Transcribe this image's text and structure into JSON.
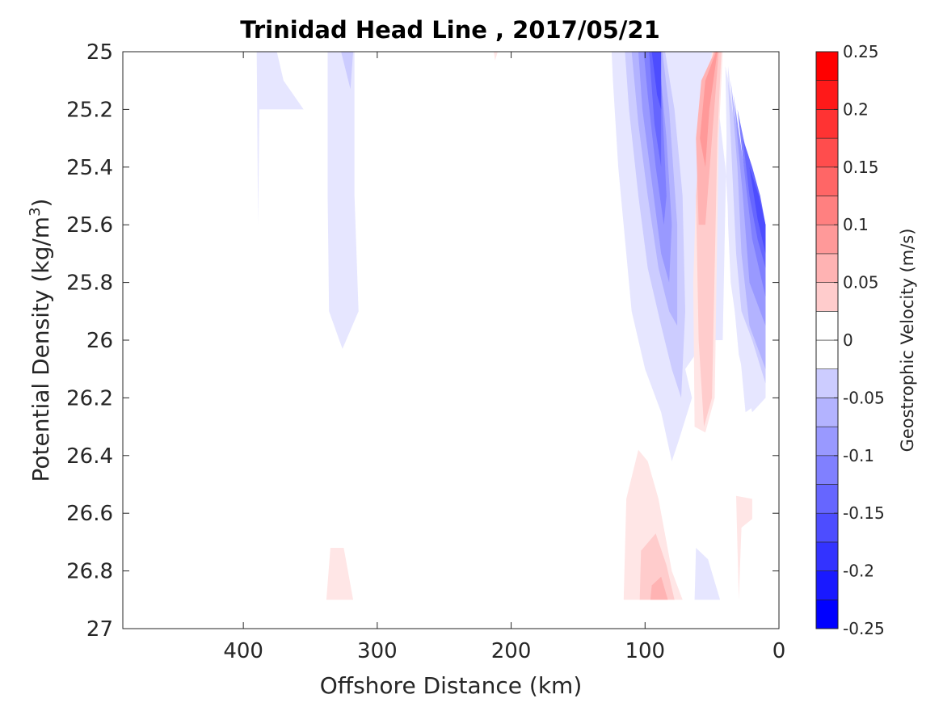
{
  "chart_data": {
    "type": "contour",
    "title": "Trinidad Head Line , 2017/05/21",
    "xlabel": "Offshore Distance (km)",
    "ylabel_main": "Potential Density (kg/m",
    "ylabel_sup": "3",
    "ylabel_end": ")",
    "x_direction": "reversed",
    "xlim": [
      0,
      490
    ],
    "ylim": [
      25,
      27
    ],
    "y_direction": "reversed",
    "xticks": [
      400,
      300,
      200,
      100,
      0
    ],
    "yticks": [
      25,
      25.2,
      25.4,
      25.6,
      25.8,
      26,
      26.2,
      26.4,
      26.6,
      26.8,
      27
    ],
    "ytick_labels": [
      "25",
      "25.2",
      "25.4",
      "25.6",
      "25.8",
      "26",
      "26.2",
      "26.4",
      "26.6",
      "26.8",
      "27"
    ],
    "grid": false,
    "colorbar": {
      "label": "Geostrophic Velocity (m/s)",
      "levels": [
        -0.25,
        -0.225,
        -0.2,
        -0.175,
        -0.15,
        -0.125,
        -0.1,
        -0.075,
        -0.05,
        -0.025,
        0,
        0.025,
        0.05,
        0.075,
        0.1,
        0.125,
        0.15,
        0.175,
        0.2,
        0.225,
        0.25
      ],
      "ticks": [
        0.25,
        0.2,
        0.15,
        0.1,
        0.05,
        0,
        -0.05,
        -0.1,
        -0.15,
        -0.2,
        -0.25
      ],
      "tick_labels": [
        "0.25",
        "0.2",
        "0.15",
        "0.1",
        "0.05",
        "0",
        "-0.05",
        "-0.1",
        "-0.15",
        "-0.2",
        "-0.25"
      ],
      "colormap": "blue-white-red"
    },
    "regions": [
      {
        "v": -0.025,
        "pts": [
          [
            390,
            25
          ],
          [
            375,
            25
          ],
          [
            370,
            25.1
          ],
          [
            355,
            25.2
          ],
          [
            388,
            25.2
          ],
          [
            389,
            25.6
          ]
        ]
      },
      {
        "v": -0.025,
        "pts": [
          [
            337,
            25
          ],
          [
            317,
            25
          ],
          [
            317,
            25.5
          ],
          [
            314,
            25.9
          ],
          [
            326,
            26.03
          ],
          [
            336,
            25.9
          ],
          [
            337,
            25.5
          ]
        ]
      },
      {
        "v": -0.05,
        "pts": [
          [
            327,
            25
          ],
          [
            318,
            25
          ],
          [
            320,
            25.13
          ]
        ]
      },
      {
        "v": 0.025,
        "pts": [
          [
            210,
            25
          ],
          [
            213,
            25
          ],
          [
            212,
            25.03
          ]
        ]
      },
      {
        "v": -0.025,
        "pts": [
          [
            125,
            25
          ],
          [
            45,
            25
          ],
          [
            45,
            25.2
          ],
          [
            40,
            25.4
          ],
          [
            35,
            25.8
          ],
          [
            30,
            26.05
          ],
          [
            20,
            26.25
          ],
          [
            10,
            26.2
          ],
          [
            10,
            25.6
          ],
          [
            30,
            25.35
          ],
          [
            38,
            25.05
          ],
          [
            42,
            26.0
          ],
          [
            55,
            26.0
          ],
          [
            70,
            26.1
          ],
          [
            65,
            26.2
          ],
          [
            75,
            26.35
          ],
          [
            80,
            26.42
          ],
          [
            88,
            26.25
          ],
          [
            100,
            26.1
          ],
          [
            110,
            25.9
          ],
          [
            120,
            25.4
          ],
          [
            124,
            25.1
          ]
        ]
      },
      {
        "v": -0.05,
        "pts": [
          [
            115,
            25
          ],
          [
            85,
            25
          ],
          [
            78,
            25.2
          ],
          [
            72,
            25.5
          ],
          [
            70,
            25.9
          ],
          [
            73,
            26.2
          ],
          [
            80,
            26.1
          ],
          [
            88,
            25.95
          ],
          [
            98,
            25.75
          ],
          [
            105,
            25.5
          ],
          [
            112,
            25.2
          ]
        ]
      },
      {
        "v": -0.075,
        "pts": [
          [
            110,
            25
          ],
          [
            87,
            25
          ],
          [
            82,
            25.2
          ],
          [
            76,
            25.6
          ],
          [
            76,
            25.95
          ],
          [
            82,
            25.9
          ],
          [
            90,
            25.75
          ],
          [
            98,
            25.5
          ],
          [
            105,
            25.25
          ]
        ]
      },
      {
        "v": -0.1,
        "pts": [
          [
            105,
            25
          ],
          [
            90,
            25
          ],
          [
            84,
            25.3
          ],
          [
            80,
            25.6
          ],
          [
            82,
            25.8
          ],
          [
            88,
            25.7
          ],
          [
            95,
            25.45
          ],
          [
            102,
            25.2
          ]
        ]
      },
      {
        "v": -0.125,
        "pts": [
          [
            101,
            25
          ],
          [
            89,
            25
          ],
          [
            86,
            25.3
          ],
          [
            84,
            25.5
          ],
          [
            86,
            25.6
          ],
          [
            92,
            25.4
          ],
          [
            98,
            25.15
          ]
        ]
      },
      {
        "v": -0.15,
        "pts": [
          [
            97,
            25
          ],
          [
            89,
            25
          ],
          [
            88,
            25.2
          ],
          [
            88,
            25.4
          ],
          [
            93,
            25.25
          ]
        ]
      },
      {
        "v": -0.175,
        "pts": [
          [
            95,
            25
          ],
          [
            88,
            25
          ],
          [
            88,
            25.2
          ],
          [
            91,
            25.15
          ]
        ]
      },
      {
        "v": 0.025,
        "pts": [
          [
            50,
            25
          ],
          [
            42,
            25
          ],
          [
            45,
            25.3
          ],
          [
            48,
            26.2
          ],
          [
            55,
            26.32
          ],
          [
            63,
            26.3
          ],
          [
            64,
            25.8
          ],
          [
            62,
            25.5
          ]
        ]
      },
      {
        "v": 0.05,
        "pts": [
          [
            49,
            25
          ],
          [
            43,
            25
          ],
          [
            46,
            25.3
          ],
          [
            50,
            26.2
          ],
          [
            56,
            26.3
          ],
          [
            60,
            26.0
          ],
          [
            62,
            25.5
          ],
          [
            58,
            25.2
          ]
        ]
      },
      {
        "v": 0.075,
        "pts": [
          [
            48,
            25
          ],
          [
            45,
            25
          ],
          [
            50,
            25.3
          ],
          [
            55,
            25.6
          ],
          [
            60,
            25.6
          ],
          [
            62,
            25.3
          ],
          [
            58,
            25.1
          ]
        ]
      },
      {
        "v": 0.1,
        "pts": [
          [
            47,
            25
          ],
          [
            46,
            25
          ],
          [
            52,
            25.2
          ],
          [
            55,
            25.4
          ],
          [
            59,
            25.3
          ],
          [
            55,
            25.1
          ]
        ]
      },
      {
        "v": -0.025,
        "pts": [
          [
            40,
            25.05
          ],
          [
            30,
            25.3
          ],
          [
            20,
            25.6
          ],
          [
            10,
            25.8
          ],
          [
            10,
            26.2
          ],
          [
            25,
            26.25
          ],
          [
            30,
            26.0
          ],
          [
            36,
            25.8
          ],
          [
            38,
            25.6
          ]
        ]
      },
      {
        "v": -0.05,
        "pts": [
          [
            38,
            25.1
          ],
          [
            30,
            25.35
          ],
          [
            20,
            25.6
          ],
          [
            10,
            25.8
          ],
          [
            10,
            26.15
          ],
          [
            20,
            26.0
          ],
          [
            28,
            25.9
          ],
          [
            32,
            25.7
          ],
          [
            35,
            25.4
          ]
        ]
      },
      {
        "v": -0.075,
        "pts": [
          [
            36,
            25.1
          ],
          [
            28,
            25.4
          ],
          [
            20,
            25.5
          ],
          [
            10,
            25.8
          ],
          [
            10,
            26.1
          ],
          [
            22,
            25.95
          ],
          [
            28,
            25.7
          ],
          [
            31,
            25.4
          ]
        ]
      },
      {
        "v": -0.1,
        "pts": [
          [
            34,
            25.15
          ],
          [
            26,
            25.4
          ],
          [
            18,
            25.5
          ],
          [
            10,
            25.7
          ],
          [
            10,
            25.95
          ],
          [
            22,
            25.8
          ],
          [
            27,
            25.5
          ]
        ]
      },
      {
        "v": -0.125,
        "pts": [
          [
            31,
            25.2
          ],
          [
            22,
            25.4
          ],
          [
            16,
            25.55
          ],
          [
            10,
            25.65
          ],
          [
            10,
            25.85
          ],
          [
            20,
            25.65
          ],
          [
            25,
            25.45
          ]
        ]
      },
      {
        "v": -0.15,
        "pts": [
          [
            27,
            25.3
          ],
          [
            20,
            25.4
          ],
          [
            14,
            25.5
          ],
          [
            10,
            25.6
          ],
          [
            10,
            25.75
          ],
          [
            16,
            25.65
          ],
          [
            22,
            25.5
          ]
        ]
      },
      {
        "v": -0.175,
        "pts": [
          [
            22,
            25.4
          ],
          [
            15,
            25.5
          ],
          [
            10,
            25.6
          ],
          [
            10,
            25.7
          ],
          [
            16,
            25.58
          ]
        ]
      },
      {
        "v": 0.025,
        "pts": [
          [
            335,
            26.72
          ],
          [
            325,
            26.72
          ],
          [
            318,
            26.9
          ],
          [
            338,
            26.9
          ]
        ]
      },
      {
        "v": 0.025,
        "pts": [
          [
            114,
            26.55
          ],
          [
            105,
            26.38
          ],
          [
            98,
            26.42
          ],
          [
            90,
            26.55
          ],
          [
            80,
            26.8
          ],
          [
            72,
            26.9
          ],
          [
            116,
            26.9
          ]
        ]
      },
      {
        "v": 0.05,
        "pts": [
          [
            103,
            26.73
          ],
          [
            92,
            26.67
          ],
          [
            84,
            26.78
          ],
          [
            78,
            26.9
          ],
          [
            104,
            26.9
          ]
        ]
      },
      {
        "v": 0.075,
        "pts": [
          [
            95,
            26.85
          ],
          [
            88,
            26.82
          ],
          [
            83,
            26.9
          ],
          [
            96,
            26.9
          ]
        ]
      },
      {
        "v": -0.025,
        "pts": [
          [
            62,
            26.72
          ],
          [
            53,
            26.76
          ],
          [
            44,
            26.9
          ],
          [
            63,
            26.9
          ]
        ]
      },
      {
        "v": 0.025,
        "pts": [
          [
            32,
            26.54
          ],
          [
            20,
            26.55
          ],
          [
            20,
            26.62
          ],
          [
            28,
            26.65
          ],
          [
            30,
            26.9
          ]
        ]
      }
    ]
  }
}
